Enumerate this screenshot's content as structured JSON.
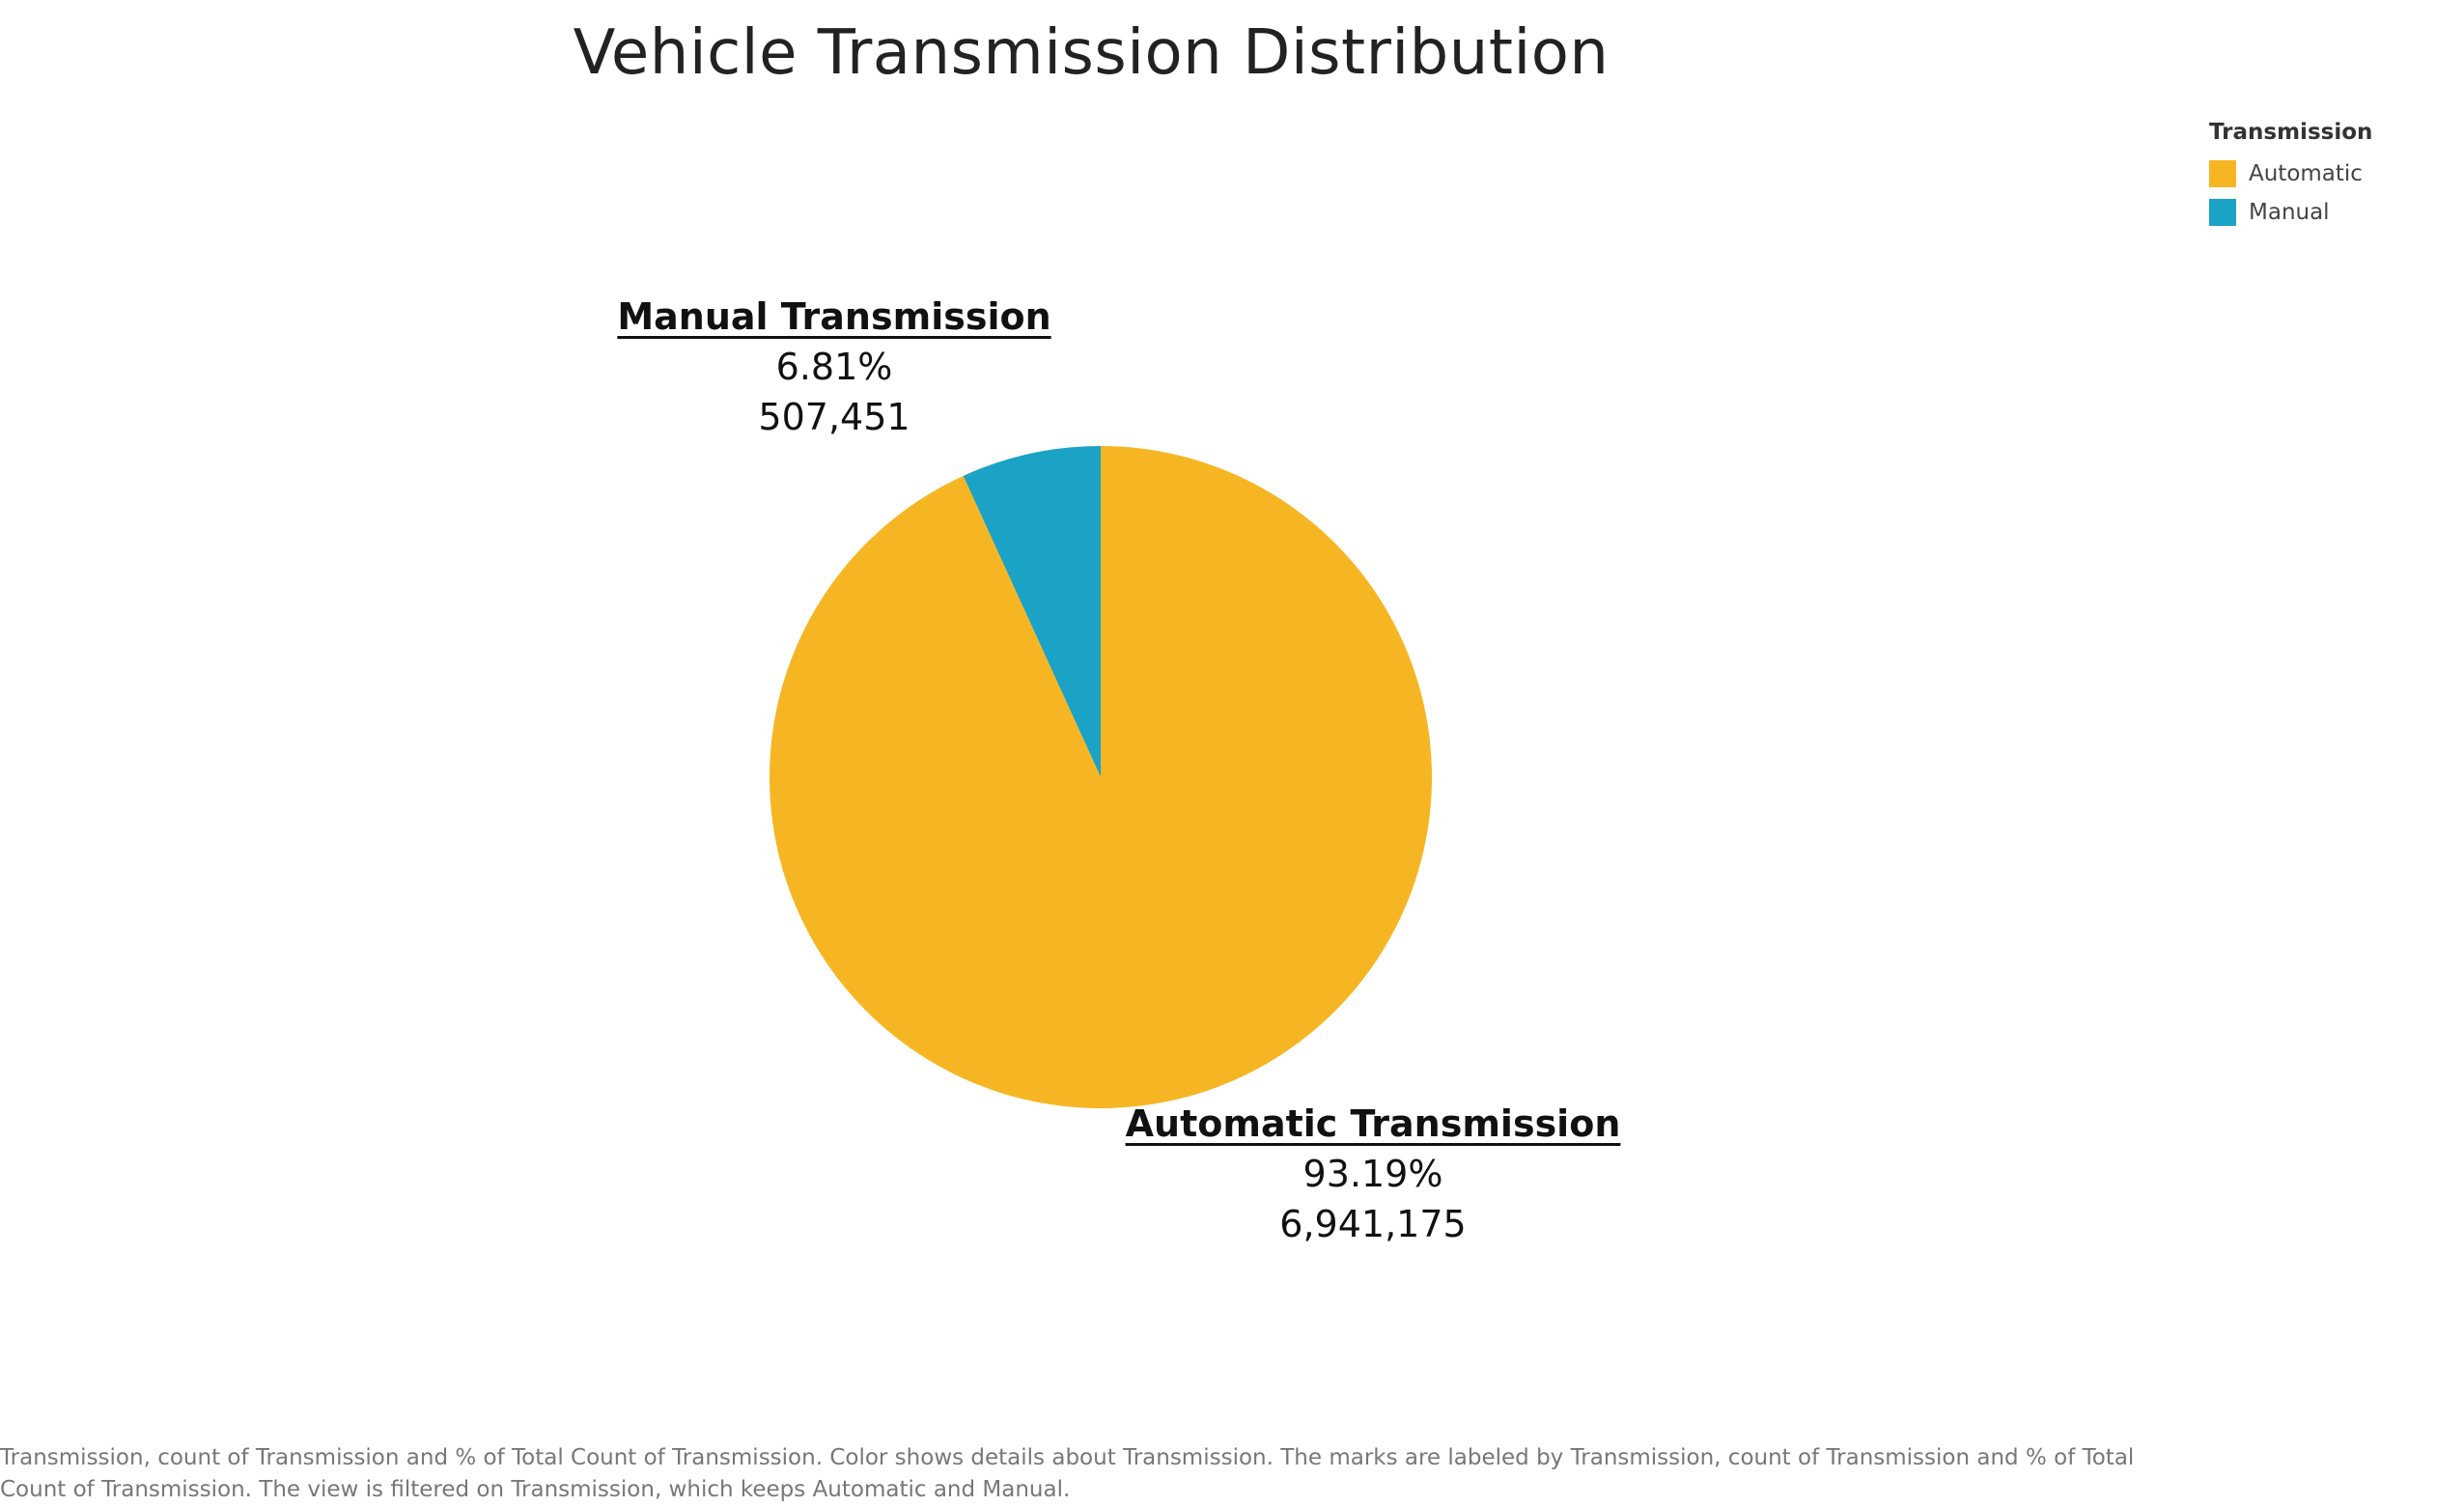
{
  "chart_data": {
    "type": "pie",
    "title": "Vehicle Transmission Distribution",
    "legend": {
      "title": "Transmission",
      "placement": "top-right",
      "items": [
        {
          "label": "Automatic",
          "color": "#F6B623"
        },
        {
          "label": "Manual",
          "color": "#1BA3C6"
        }
      ]
    },
    "slices": [
      {
        "category": "Manual",
        "label": "Manual Transmission",
        "value": 507451,
        "value_text": "507,451",
        "percent": 6.81,
        "percent_text": "6.81%",
        "color": "#1BA3C6"
      },
      {
        "category": "Automatic",
        "label": "Automatic Transmission",
        "value": 6941175,
        "value_text": "6,941,175",
        "percent": 93.19,
        "percent_text": "93.19%",
        "color": "#F6B623"
      }
    ],
    "caption": "Transmission, count of Transmission and % of Total Count of Transmission.  Color shows details about Transmission.  The marks are labeled by Transmission, count of Transmission and % of Total Count of Transmission. The view is filtered on Transmission, which keeps Automatic and Manual."
  }
}
